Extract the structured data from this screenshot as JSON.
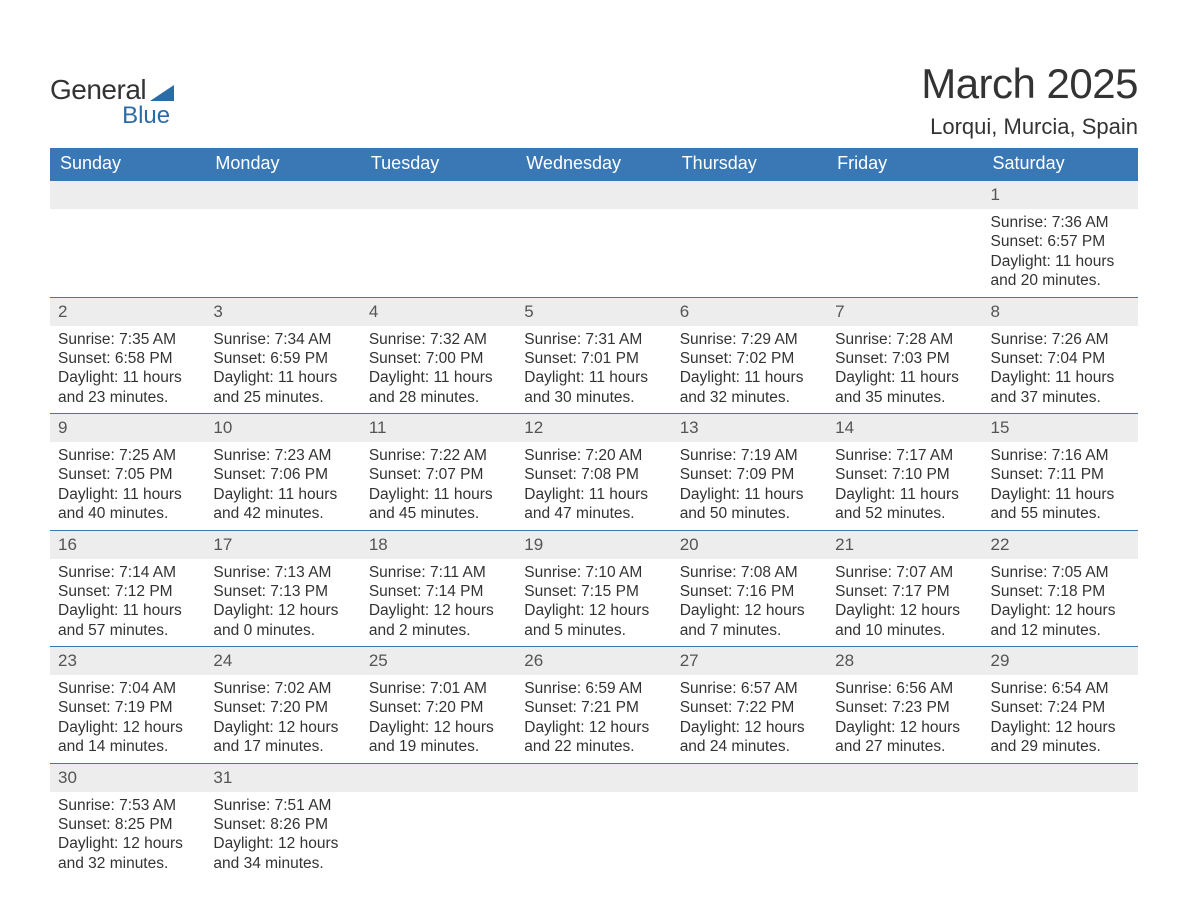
{
  "logo": {
    "text1": "General",
    "text2": "Blue"
  },
  "title": {
    "month": "March 2025",
    "location": "Lorqui, Murcia, Spain"
  },
  "colors": {
    "header_bg": "#3a78b5",
    "header_text": "#ffffff",
    "daynum_bg": "#ededed",
    "row_divider": "#3a78b5",
    "text": "#333333",
    "logo_blue": "#2b6ca8",
    "background": "#ffffff"
  },
  "typography": {
    "title_fontsize": 42,
    "location_fontsize": 22,
    "header_fontsize": 18,
    "daynum_fontsize": 17,
    "body_fontsize": 15.5,
    "font_family": "Arial"
  },
  "calendar": {
    "type": "table",
    "columns": [
      "Sunday",
      "Monday",
      "Tuesday",
      "Wednesday",
      "Thursday",
      "Friday",
      "Saturday"
    ],
    "weeks": [
      [
        null,
        null,
        null,
        null,
        null,
        null,
        {
          "day": "1",
          "sunrise": "Sunrise: 7:36 AM",
          "sunset": "Sunset: 6:57 PM",
          "daylight1": "Daylight: 11 hours",
          "daylight2": "and 20 minutes."
        }
      ],
      [
        {
          "day": "2",
          "sunrise": "Sunrise: 7:35 AM",
          "sunset": "Sunset: 6:58 PM",
          "daylight1": "Daylight: 11 hours",
          "daylight2": "and 23 minutes."
        },
        {
          "day": "3",
          "sunrise": "Sunrise: 7:34 AM",
          "sunset": "Sunset: 6:59 PM",
          "daylight1": "Daylight: 11 hours",
          "daylight2": "and 25 minutes."
        },
        {
          "day": "4",
          "sunrise": "Sunrise: 7:32 AM",
          "sunset": "Sunset: 7:00 PM",
          "daylight1": "Daylight: 11 hours",
          "daylight2": "and 28 minutes."
        },
        {
          "day": "5",
          "sunrise": "Sunrise: 7:31 AM",
          "sunset": "Sunset: 7:01 PM",
          "daylight1": "Daylight: 11 hours",
          "daylight2": "and 30 minutes."
        },
        {
          "day": "6",
          "sunrise": "Sunrise: 7:29 AM",
          "sunset": "Sunset: 7:02 PM",
          "daylight1": "Daylight: 11 hours",
          "daylight2": "and 32 minutes."
        },
        {
          "day": "7",
          "sunrise": "Sunrise: 7:28 AM",
          "sunset": "Sunset: 7:03 PM",
          "daylight1": "Daylight: 11 hours",
          "daylight2": "and 35 minutes."
        },
        {
          "day": "8",
          "sunrise": "Sunrise: 7:26 AM",
          "sunset": "Sunset: 7:04 PM",
          "daylight1": "Daylight: 11 hours",
          "daylight2": "and 37 minutes."
        }
      ],
      [
        {
          "day": "9",
          "sunrise": "Sunrise: 7:25 AM",
          "sunset": "Sunset: 7:05 PM",
          "daylight1": "Daylight: 11 hours",
          "daylight2": "and 40 minutes."
        },
        {
          "day": "10",
          "sunrise": "Sunrise: 7:23 AM",
          "sunset": "Sunset: 7:06 PM",
          "daylight1": "Daylight: 11 hours",
          "daylight2": "and 42 minutes."
        },
        {
          "day": "11",
          "sunrise": "Sunrise: 7:22 AM",
          "sunset": "Sunset: 7:07 PM",
          "daylight1": "Daylight: 11 hours",
          "daylight2": "and 45 minutes."
        },
        {
          "day": "12",
          "sunrise": "Sunrise: 7:20 AM",
          "sunset": "Sunset: 7:08 PM",
          "daylight1": "Daylight: 11 hours",
          "daylight2": "and 47 minutes."
        },
        {
          "day": "13",
          "sunrise": "Sunrise: 7:19 AM",
          "sunset": "Sunset: 7:09 PM",
          "daylight1": "Daylight: 11 hours",
          "daylight2": "and 50 minutes."
        },
        {
          "day": "14",
          "sunrise": "Sunrise: 7:17 AM",
          "sunset": "Sunset: 7:10 PM",
          "daylight1": "Daylight: 11 hours",
          "daylight2": "and 52 minutes."
        },
        {
          "day": "15",
          "sunrise": "Sunrise: 7:16 AM",
          "sunset": "Sunset: 7:11 PM",
          "daylight1": "Daylight: 11 hours",
          "daylight2": "and 55 minutes."
        }
      ],
      [
        {
          "day": "16",
          "sunrise": "Sunrise: 7:14 AM",
          "sunset": "Sunset: 7:12 PM",
          "daylight1": "Daylight: 11 hours",
          "daylight2": "and 57 minutes."
        },
        {
          "day": "17",
          "sunrise": "Sunrise: 7:13 AM",
          "sunset": "Sunset: 7:13 PM",
          "daylight1": "Daylight: 12 hours",
          "daylight2": "and 0 minutes."
        },
        {
          "day": "18",
          "sunrise": "Sunrise: 7:11 AM",
          "sunset": "Sunset: 7:14 PM",
          "daylight1": "Daylight: 12 hours",
          "daylight2": "and 2 minutes."
        },
        {
          "day": "19",
          "sunrise": "Sunrise: 7:10 AM",
          "sunset": "Sunset: 7:15 PM",
          "daylight1": "Daylight: 12 hours",
          "daylight2": "and 5 minutes."
        },
        {
          "day": "20",
          "sunrise": "Sunrise: 7:08 AM",
          "sunset": "Sunset: 7:16 PM",
          "daylight1": "Daylight: 12 hours",
          "daylight2": "and 7 minutes."
        },
        {
          "day": "21",
          "sunrise": "Sunrise: 7:07 AM",
          "sunset": "Sunset: 7:17 PM",
          "daylight1": "Daylight: 12 hours",
          "daylight2": "and 10 minutes."
        },
        {
          "day": "22",
          "sunrise": "Sunrise: 7:05 AM",
          "sunset": "Sunset: 7:18 PM",
          "daylight1": "Daylight: 12 hours",
          "daylight2": "and 12 minutes."
        }
      ],
      [
        {
          "day": "23",
          "sunrise": "Sunrise: 7:04 AM",
          "sunset": "Sunset: 7:19 PM",
          "daylight1": "Daylight: 12 hours",
          "daylight2": "and 14 minutes."
        },
        {
          "day": "24",
          "sunrise": "Sunrise: 7:02 AM",
          "sunset": "Sunset: 7:20 PM",
          "daylight1": "Daylight: 12 hours",
          "daylight2": "and 17 minutes."
        },
        {
          "day": "25",
          "sunrise": "Sunrise: 7:01 AM",
          "sunset": "Sunset: 7:20 PM",
          "daylight1": "Daylight: 12 hours",
          "daylight2": "and 19 minutes."
        },
        {
          "day": "26",
          "sunrise": "Sunrise: 6:59 AM",
          "sunset": "Sunset: 7:21 PM",
          "daylight1": "Daylight: 12 hours",
          "daylight2": "and 22 minutes."
        },
        {
          "day": "27",
          "sunrise": "Sunrise: 6:57 AM",
          "sunset": "Sunset: 7:22 PM",
          "daylight1": "Daylight: 12 hours",
          "daylight2": "and 24 minutes."
        },
        {
          "day": "28",
          "sunrise": "Sunrise: 6:56 AM",
          "sunset": "Sunset: 7:23 PM",
          "daylight1": "Daylight: 12 hours",
          "daylight2": "and 27 minutes."
        },
        {
          "day": "29",
          "sunrise": "Sunrise: 6:54 AM",
          "sunset": "Sunset: 7:24 PM",
          "daylight1": "Daylight: 12 hours",
          "daylight2": "and 29 minutes."
        }
      ],
      [
        {
          "day": "30",
          "sunrise": "Sunrise: 7:53 AM",
          "sunset": "Sunset: 8:25 PM",
          "daylight1": "Daylight: 12 hours",
          "daylight2": "and 32 minutes."
        },
        {
          "day": "31",
          "sunrise": "Sunrise: 7:51 AM",
          "sunset": "Sunset: 8:26 PM",
          "daylight1": "Daylight: 12 hours",
          "daylight2": "and 34 minutes."
        },
        null,
        null,
        null,
        null,
        null
      ]
    ]
  }
}
